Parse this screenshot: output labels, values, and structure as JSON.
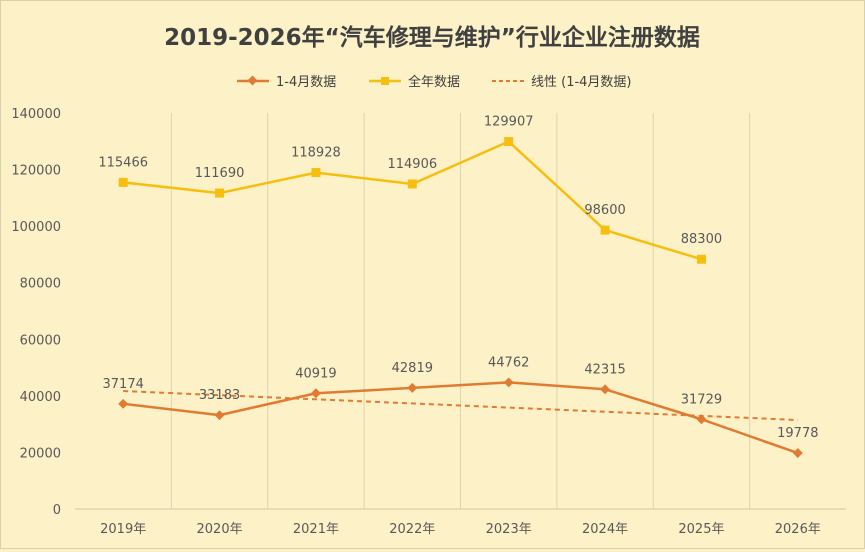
{
  "chart_data": {
    "type": "line",
    "title": "2019-2026年“汽车修理与维护”行业企业注册数据",
    "categories": [
      "2019年",
      "2020年",
      "2021年",
      "2022年",
      "2023年",
      "2024年",
      "2025年",
      "2026年"
    ],
    "ylim": [
      0,
      140000
    ],
    "yticks": [
      "0",
      "20000",
      "40000",
      "60000",
      "80000",
      "100000",
      "120000",
      "140000"
    ],
    "grid": "vertical",
    "legend_position": "top",
    "series": [
      {
        "name": "1-4月数据",
        "color": "#e07b32",
        "marker": "diamond",
        "values": [
          37174,
          33183,
          40919,
          42819,
          44762,
          42315,
          31729,
          19778
        ],
        "labels": [
          "37174",
          "33183",
          "40919",
          "42819",
          "44762",
          "42315",
          "31729",
          "19778"
        ]
      },
      {
        "name": "全年数据",
        "color": "#f6bf0f",
        "marker": "square",
        "values": [
          115466,
          111690,
          118928,
          114906,
          129907,
          98600,
          88300,
          null
        ],
        "labels": [
          "115466",
          "111690",
          "118928",
          "114906",
          "129907",
          "98600",
          "88300",
          ""
        ]
      },
      {
        "name": "线性 (1-4月数据)",
        "color": "#e07b32",
        "style": "dashed",
        "trendline_of": "1-4月数据"
      }
    ]
  }
}
